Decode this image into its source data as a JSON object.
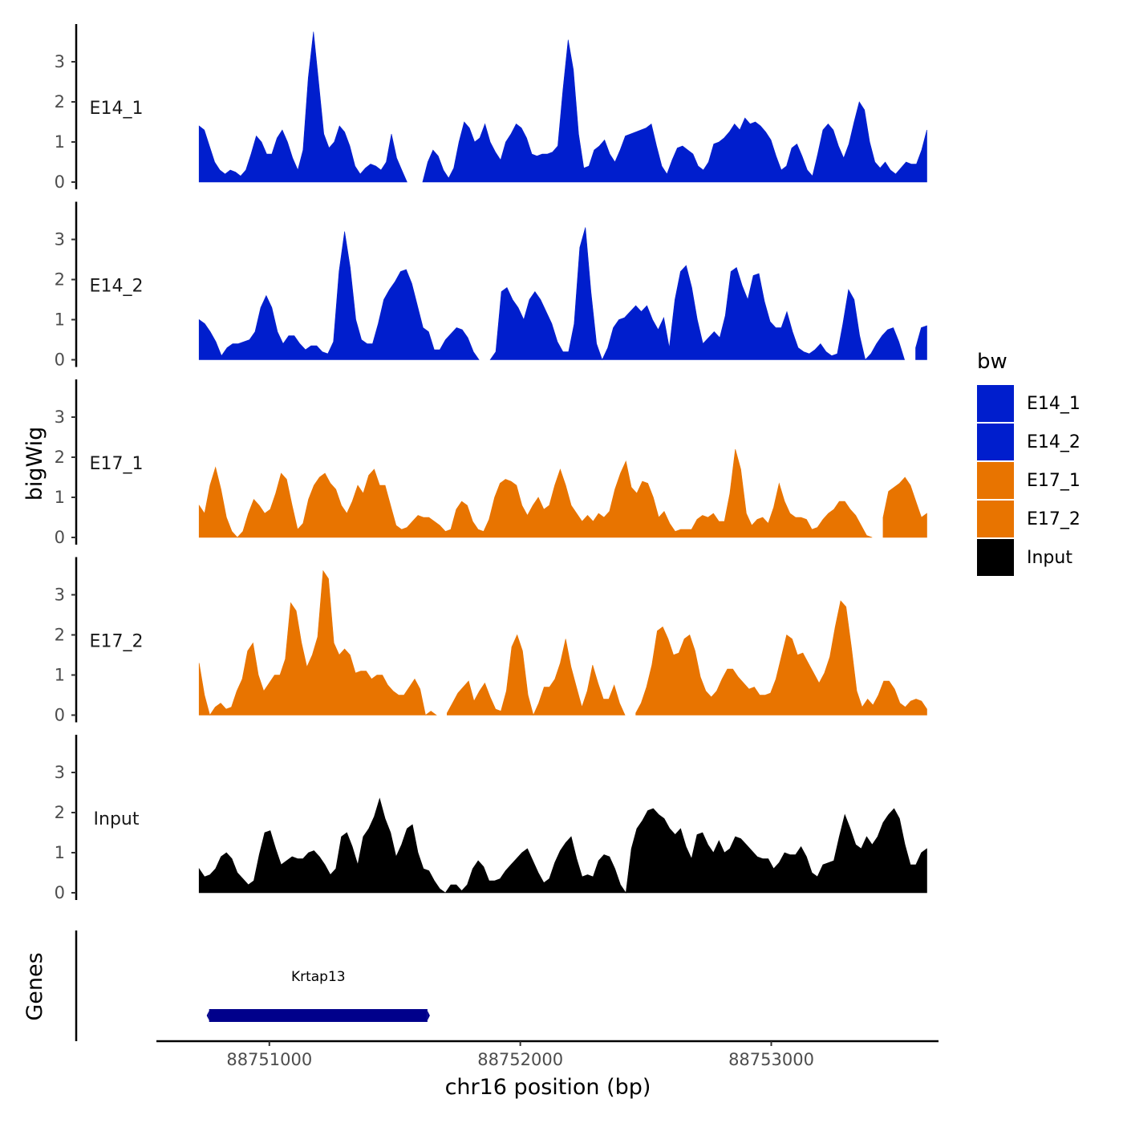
{
  "chart_data": {
    "type": "area",
    "ylabel": "bigWig",
    "xlabel": "chr16 position (bp)",
    "genes_label": "Genes",
    "x_range": [
      88750720,
      88753620
    ],
    "xlim": [
      88750550,
      88753660
    ],
    "x_ticks": [
      {
        "value": 88751000,
        "label": "88751000"
      },
      {
        "value": 88752000,
        "label": "88752000"
      },
      {
        "value": 88753000,
        "label": "88753000"
      }
    ],
    "ylim": [
      0,
      3.9
    ],
    "y_ticks": [
      {
        "value": 0,
        "label": "0"
      },
      {
        "value": 1,
        "label": "1"
      },
      {
        "value": 2,
        "label": "2"
      },
      {
        "value": 3,
        "label": "3"
      }
    ],
    "legend": {
      "title": "bw",
      "position": "right",
      "entries": [
        {
          "name": "E14_1",
          "color": "#001ecd"
        },
        {
          "name": "E14_2",
          "color": "#001ecd"
        },
        {
          "name": "E17_1",
          "color": "#e87400"
        },
        {
          "name": "E17_2",
          "color": "#e87400"
        },
        {
          "name": "Input",
          "color": "#000000"
        }
      ]
    },
    "series": [
      {
        "name": "E14_1",
        "color": "#001ecd",
        "values": [
          1.4,
          1.3,
          0.9,
          0.5,
          0.3,
          0.2,
          0.3,
          0.25,
          0.15,
          0.3,
          0.7,
          1.15,
          1.0,
          0.7,
          0.7,
          1.1,
          1.3,
          1.0,
          0.6,
          0.3,
          0.8,
          2.6,
          3.75,
          2.5,
          1.2,
          0.85,
          1.0,
          1.4,
          1.25,
          0.9,
          0.4,
          0.2,
          0.35,
          0.45,
          0.4,
          0.3,
          0.5,
          1.2,
          0.6,
          0.3,
          0.0,
          null,
          null,
          0.0,
          0.5,
          0.8,
          0.65,
          0.3,
          0.1,
          0.35,
          1.0,
          1.5,
          1.35,
          1.0,
          1.1,
          1.45,
          1.0,
          0.75,
          0.55,
          1.0,
          1.2,
          1.45,
          1.35,
          1.1,
          0.7,
          0.65,
          0.7,
          0.7,
          0.75,
          0.9,
          2.3,
          3.55,
          2.8,
          1.2,
          0.35,
          0.4,
          0.8,
          0.9,
          1.05,
          0.7,
          0.5,
          0.8,
          1.15,
          1.2,
          1.25,
          1.3,
          1.35,
          1.45,
          0.9,
          0.4,
          0.2,
          0.55,
          0.85,
          0.9,
          0.8,
          0.7,
          0.4,
          0.3,
          0.5,
          0.95,
          1.0,
          1.1,
          1.25,
          1.45,
          1.3,
          1.6,
          1.45,
          1.5,
          1.4,
          1.25,
          1.05,
          0.65,
          0.3,
          0.4,
          0.85,
          0.95,
          0.65,
          0.3,
          0.15,
          0.7,
          1.3,
          1.45,
          1.3,
          0.9,
          0.6,
          0.95,
          1.5,
          2.0,
          1.8,
          1.0,
          0.5,
          0.35,
          0.5,
          0.3,
          0.2,
          0.35,
          0.5,
          0.45,
          0.45,
          0.8,
          1.3
        ]
      },
      {
        "name": "E14_2",
        "color": "#001ecd",
        "values": [
          1.0,
          0.9,
          0.7,
          0.45,
          0.1,
          0.3,
          0.4,
          0.4,
          0.45,
          0.5,
          0.7,
          1.3,
          1.6,
          1.3,
          0.7,
          0.4,
          0.6,
          0.6,
          0.4,
          0.25,
          0.35,
          0.35,
          0.2,
          0.15,
          0.45,
          2.2,
          3.2,
          2.3,
          1.0,
          0.5,
          0.4,
          0.4,
          0.9,
          1.5,
          1.75,
          1.95,
          2.2,
          2.25,
          1.9,
          1.35,
          0.8,
          0.7,
          0.25,
          0.25,
          0.5,
          0.65,
          0.8,
          0.75,
          0.55,
          0.2,
          0.0,
          null,
          0.0,
          0.2,
          1.7,
          1.8,
          1.5,
          1.3,
          1.0,
          1.5,
          1.7,
          1.5,
          1.2,
          0.9,
          0.45,
          0.2,
          0.2,
          0.9,
          2.8,
          3.3,
          1.7,
          0.4,
          0.0,
          0.3,
          0.8,
          1.0,
          1.05,
          1.2,
          1.35,
          1.2,
          1.35,
          1.0,
          0.75,
          1.05,
          0.3,
          1.5,
          2.2,
          2.35,
          1.8,
          1.0,
          0.4,
          0.55,
          0.7,
          0.55,
          1.1,
          2.2,
          2.3,
          1.85,
          1.5,
          2.1,
          2.15,
          1.45,
          0.95,
          0.8,
          0.8,
          1.2,
          0.7,
          0.3,
          0.2,
          0.15,
          0.25,
          0.4,
          0.2,
          0.1,
          0.15,
          0.9,
          1.75,
          1.5,
          0.6,
          0.0,
          0.15,
          0.4,
          0.6,
          0.75,
          0.8,
          0.45,
          0.0,
          null,
          0.3,
          0.8,
          0.85
        ]
      },
      {
        "name": "E17_1",
        "color": "#e87400",
        "values": [
          0.8,
          0.6,
          1.3,
          1.75,
          1.2,
          0.5,
          0.15,
          0.0,
          0.15,
          0.6,
          0.95,
          0.8,
          0.6,
          0.7,
          1.1,
          1.6,
          1.45,
          0.8,
          0.2,
          0.35,
          0.95,
          1.3,
          1.5,
          1.6,
          1.35,
          1.2,
          0.8,
          0.6,
          0.9,
          1.3,
          1.1,
          1.55,
          1.7,
          1.3,
          1.3,
          0.8,
          0.3,
          0.2,
          0.25,
          0.4,
          0.55,
          0.5,
          0.5,
          0.4,
          0.3,
          0.15,
          0.2,
          0.7,
          0.9,
          0.8,
          0.4,
          0.2,
          0.15,
          0.45,
          1.0,
          1.35,
          1.45,
          1.4,
          1.3,
          0.8,
          0.55,
          0.8,
          1.0,
          0.7,
          0.8,
          1.3,
          1.7,
          1.3,
          0.8,
          0.6,
          0.4,
          0.55,
          0.4,
          0.6,
          0.5,
          0.65,
          1.2,
          1.6,
          1.9,
          1.25,
          1.1,
          1.4,
          1.35,
          1.0,
          0.5,
          0.65,
          0.35,
          0.15,
          0.2,
          0.2,
          0.2,
          0.45,
          0.55,
          0.5,
          0.6,
          0.4,
          0.4,
          1.1,
          2.2,
          1.7,
          0.6,
          0.3,
          0.45,
          0.5,
          0.35,
          0.75,
          1.35,
          0.9,
          0.6,
          0.5,
          0.5,
          0.45,
          0.2,
          0.25,
          0.45,
          0.6,
          0.7,
          0.9,
          0.9,
          0.7,
          0.55,
          0.3,
          0.05,
          0.0,
          null,
          0.5,
          1.15,
          1.25,
          1.35,
          1.5,
          1.3,
          0.9,
          0.5,
          0.6
        ]
      },
      {
        "name": "E17_2",
        "color": "#e87400",
        "values": [
          1.3,
          0.5,
          0.0,
          0.2,
          0.3,
          0.15,
          0.2,
          0.6,
          0.9,
          1.6,
          1.8,
          1.0,
          0.6,
          0.8,
          1.0,
          1.0,
          1.4,
          2.8,
          2.6,
          1.8,
          1.2,
          1.5,
          1.95,
          3.6,
          3.4,
          1.8,
          1.5,
          1.65,
          1.5,
          1.05,
          1.1,
          1.1,
          0.9,
          1.0,
          1.0,
          0.75,
          0.6,
          0.5,
          0.5,
          0.7,
          0.9,
          0.65,
          0.0,
          0.1,
          0.0,
          null,
          0.05,
          0.3,
          0.55,
          0.7,
          0.85,
          0.35,
          0.6,
          0.8,
          0.45,
          0.15,
          0.1,
          0.6,
          1.7,
          2.0,
          1.6,
          0.5,
          0.0,
          0.3,
          0.7,
          0.7,
          0.9,
          1.3,
          1.9,
          1.2,
          0.7,
          0.2,
          0.6,
          1.25,
          0.8,
          0.4,
          0.4,
          0.75,
          0.3,
          0.0,
          null,
          0.05,
          0.3,
          0.7,
          1.25,
          2.1,
          2.2,
          1.9,
          1.5,
          1.55,
          1.9,
          2.0,
          1.6,
          0.95,
          0.6,
          0.45,
          0.6,
          0.9,
          1.15,
          1.15,
          0.95,
          0.8,
          0.65,
          0.7,
          0.5,
          0.5,
          0.55,
          0.9,
          1.45,
          2.0,
          1.9,
          1.5,
          1.55,
          1.3,
          1.05,
          0.8,
          1.05,
          1.45,
          2.2,
          2.85,
          2.7,
          1.7,
          0.6,
          0.2,
          0.4,
          0.25,
          0.5,
          0.85,
          0.85,
          0.65,
          0.3,
          0.2,
          0.35,
          0.4,
          0.35,
          0.15
        ]
      },
      {
        "name": "Input",
        "color": "#000000",
        "values": [
          0.6,
          0.4,
          0.45,
          0.6,
          0.9,
          1.0,
          0.85,
          0.5,
          0.35,
          0.2,
          0.3,
          0.95,
          1.5,
          1.55,
          1.1,
          0.7,
          0.8,
          0.9,
          0.85,
          0.85,
          1.0,
          1.05,
          0.9,
          0.7,
          0.45,
          0.6,
          1.4,
          1.5,
          1.15,
          0.7,
          1.4,
          1.6,
          1.9,
          2.35,
          1.85,
          1.5,
          0.9,
          1.2,
          1.6,
          1.7,
          1.0,
          0.6,
          0.55,
          0.3,
          0.1,
          0.0,
          0.2,
          0.2,
          0.05,
          0.2,
          0.6,
          0.8,
          0.65,
          0.3,
          0.3,
          0.35,
          0.55,
          0.7,
          0.85,
          1.0,
          1.1,
          0.8,
          0.5,
          0.25,
          0.35,
          0.75,
          1.05,
          1.25,
          1.4,
          0.85,
          0.4,
          0.45,
          0.4,
          0.8,
          0.95,
          0.9,
          0.6,
          0.2,
          0.0,
          1.1,
          1.6,
          1.8,
          2.05,
          2.1,
          1.95,
          1.85,
          1.6,
          1.45,
          1.6,
          1.15,
          0.85,
          1.45,
          1.5,
          1.2,
          1.0,
          1.3,
          1.0,
          1.1,
          1.4,
          1.35,
          1.2,
          1.05,
          0.9,
          0.85,
          0.85,
          0.6,
          0.75,
          1.0,
          0.95,
          0.95,
          1.15,
          0.9,
          0.5,
          0.4,
          0.7,
          0.75,
          0.8,
          1.4,
          1.95,
          1.6,
          1.2,
          1.1,
          1.4,
          1.2,
          1.4,
          1.75,
          1.95,
          2.1,
          1.85,
          1.2,
          0.7,
          0.7,
          1.0,
          1.1
        ]
      }
    ],
    "genes": [
      {
        "name": "Krtap13",
        "start": 88750760,
        "end": 88751630,
        "color": "#00008b"
      }
    ]
  }
}
